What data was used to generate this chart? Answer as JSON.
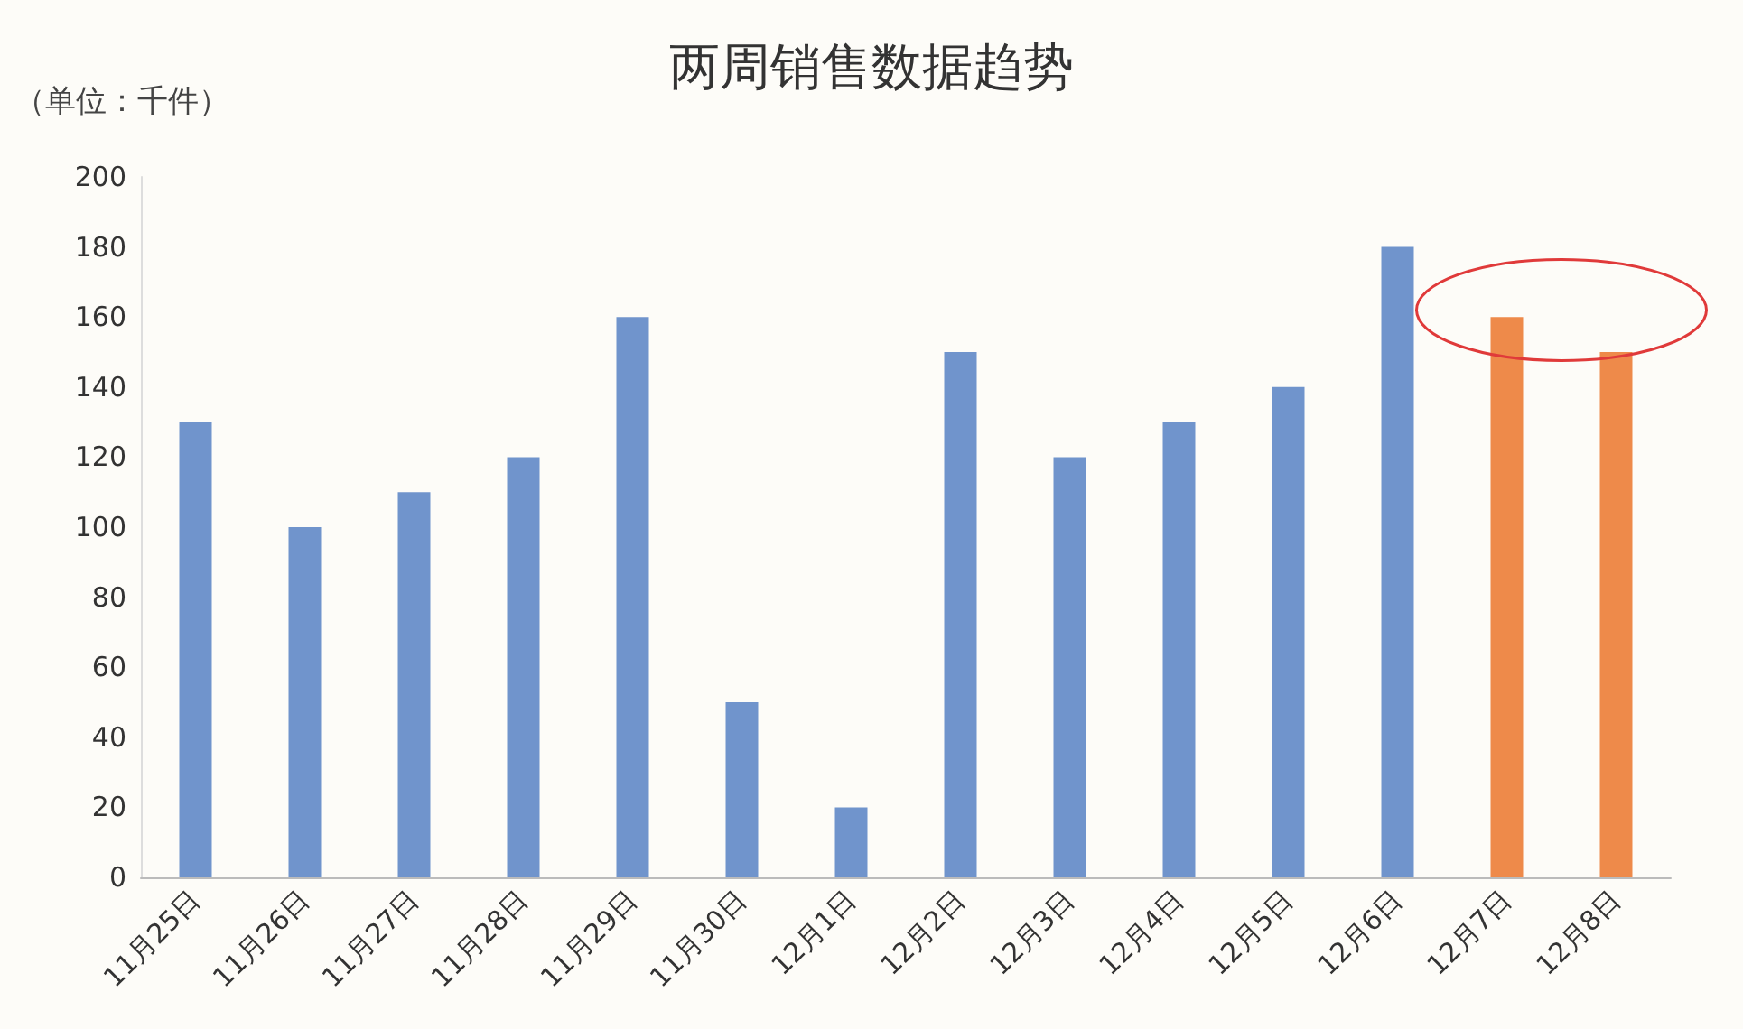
{
  "chart_data": {
    "type": "bar",
    "title": "两周销售数据趋势",
    "ylabel": "（单位：千件）",
    "categories": [
      "11月25日",
      "11月26日",
      "11月27日",
      "11月28日",
      "11月29日",
      "11月30日",
      "12月1日",
      "12月2日",
      "12月3日",
      "12月4日",
      "12月5日",
      "12月6日",
      "12月7日",
      "12月8日"
    ],
    "values": [
      130,
      100,
      110,
      120,
      160,
      50,
      20,
      150,
      120,
      130,
      140,
      180,
      160,
      150
    ],
    "colors": [
      "#7094cc",
      "#7094cc",
      "#7094cc",
      "#7094cc",
      "#7094cc",
      "#7094cc",
      "#7094cc",
      "#7094cc",
      "#7094cc",
      "#7094cc",
      "#7094cc",
      "#7094cc",
      "#ee8a4a",
      "#ee8a4a"
    ],
    "ylim": [
      0,
      200
    ],
    "yticks": [
      0,
      20,
      40,
      60,
      80,
      100,
      120,
      140,
      160,
      180,
      200
    ],
    "grid": false
  }
}
